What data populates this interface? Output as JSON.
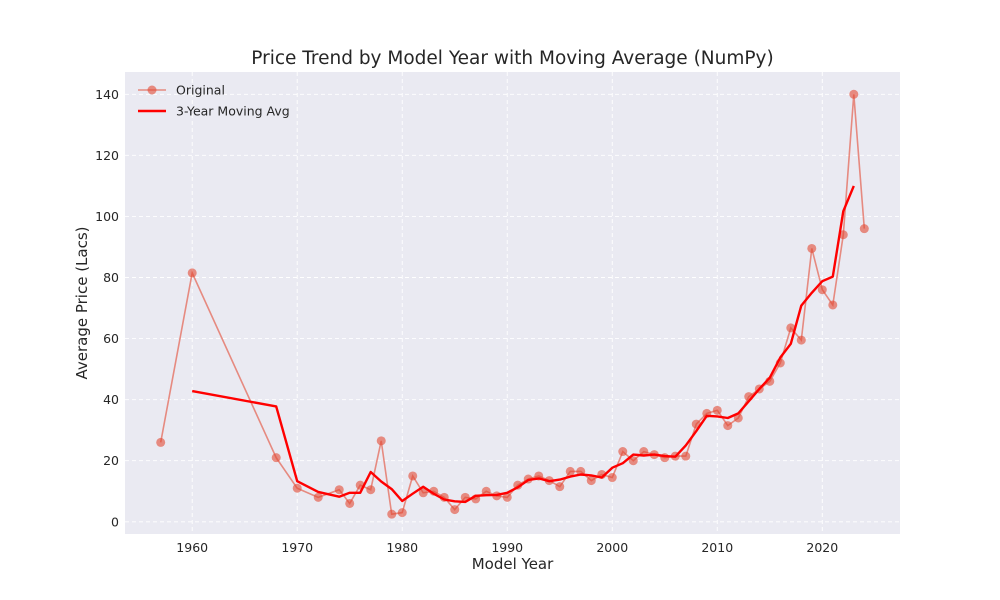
{
  "chart_data": {
    "type": "line",
    "title": "Price Trend by Model Year with Moving Average (NumPy)",
    "xlabel": "Model Year",
    "ylabel": "Average Price (Lacs)",
    "xlim": [
      1953.6,
      2027.4
    ],
    "ylim": [
      -4.0,
      147.3
    ],
    "xticks": [
      1960,
      1970,
      1980,
      1990,
      2000,
      2010,
      2020
    ],
    "yticks": [
      0,
      20,
      40,
      60,
      80,
      100,
      120,
      140
    ],
    "grid": true,
    "legend_position": "top-left",
    "colors": {
      "original": "#E24A33",
      "moving_avg": "#FF0000",
      "plot_bg": "#EAEAF2",
      "grid": "#FFFFFF"
    },
    "series": [
      {
        "name": "Original",
        "style": "line+markers",
        "x": [
          1957,
          1960,
          1968,
          1970,
          1972,
          1974,
          1975,
          1976,
          1977,
          1978,
          1979,
          1980,
          1981,
          1982,
          1983,
          1984,
          1985,
          1986,
          1987,
          1988,
          1989,
          1990,
          1991,
          1992,
          1993,
          1994,
          1995,
          1996,
          1997,
          1998,
          1999,
          2000,
          2001,
          2002,
          2003,
          2004,
          2005,
          2006,
          2007,
          2008,
          2009,
          2010,
          2011,
          2012,
          2013,
          2014,
          2015,
          2016,
          2017,
          2018,
          2019,
          2020,
          2021,
          2022,
          2023,
          2024
        ],
        "y": [
          26,
          81.5,
          21,
          11,
          8,
          10.5,
          6,
          12,
          10.5,
          26.5,
          2.5,
          3,
          15,
          9.5,
          10,
          8,
          4,
          8,
          7.5,
          10,
          8.5,
          8,
          12,
          14,
          15,
          13.5,
          11.5,
          16.5,
          16.5,
          13.5,
          15.5,
          14.5,
          23,
          20,
          23,
          22,
          21,
          21.5,
          21.5,
          32,
          35.5,
          36.5,
          31.5,
          34,
          41,
          43.5,
          46,
          52,
          63.5,
          59.5,
          89.5,
          76,
          71,
          94,
          140,
          96
        ]
      },
      {
        "name": "3-Year Moving Avg",
        "style": "line",
        "x": [
          1960,
          1968,
          1970,
          1972,
          1974,
          1975,
          1976,
          1977,
          1978,
          1979,
          1980,
          1981,
          1982,
          1983,
          1984,
          1985,
          1986,
          1987,
          1988,
          1989,
          1990,
          1991,
          1992,
          1993,
          1994,
          1995,
          1996,
          1997,
          1998,
          1999,
          2000,
          2001,
          2002,
          2003,
          2004,
          2005,
          2006,
          2007,
          2008,
          2009,
          2010,
          2011,
          2012,
          2013,
          2014,
          2015,
          2016,
          2017,
          2018,
          2019,
          2020,
          2021,
          2022,
          2023
        ],
        "y": [
          42.8,
          37.8,
          13.3,
          9.8,
          8.2,
          9.5,
          9.5,
          16.3,
          13.2,
          10.7,
          6.8,
          9.2,
          11.5,
          9.2,
          7.3,
          6.7,
          6.5,
          8.5,
          8.7,
          8.8,
          9.5,
          11.3,
          13.7,
          14.2,
          13.3,
          13.8,
          14.8,
          15.5,
          15.2,
          14.5,
          17.7,
          19.2,
          22.0,
          21.7,
          22.0,
          21.5,
          21.3,
          25.0,
          29.7,
          34.7,
          34.5,
          34.0,
          35.5,
          39.5,
          43.5,
          47.2,
          53.8,
          58.3,
          70.8,
          75.0,
          78.8,
          80.3,
          101.7,
          110.0
        ]
      }
    ]
  }
}
